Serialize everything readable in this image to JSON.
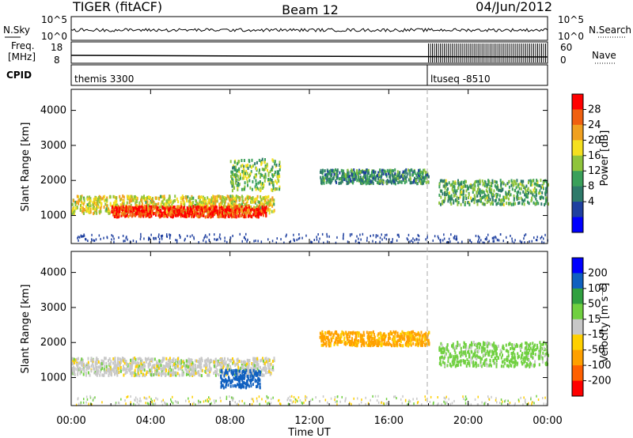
{
  "header": {
    "radar": "TIGER (fitACF)",
    "beam": "Beam 12",
    "date": "04/Jun/2012"
  },
  "panels": {
    "nsky_label": "N.Sky",
    "nsearch_label": "N.Search",
    "nsky_ticks": [
      "10^5",
      "10^0"
    ],
    "nsearch_ticks": [
      "10^5",
      "10^0"
    ],
    "freq_label": "Freq.",
    "freq_unit": "[MHz]",
    "freq_ticks": [
      "18",
      "8"
    ],
    "nave_label": "Nave",
    "nave_ticks": [
      "60",
      "0"
    ],
    "cpid_label": "CPID",
    "cpid_segments": [
      "themis 3300",
      "ltuseq -8510"
    ]
  },
  "colors": {
    "power": [
      "#0000ff",
      "#1f40a0",
      "#2e7a6a",
      "#3aa05a",
      "#8fc43c",
      "#f5e020",
      "#f0a020",
      "#f06010",
      "#ff0000"
    ],
    "velocity": [
      "#ff0000",
      "#ff6000",
      "#ffa000",
      "#ffd000",
      "#c8c8c8",
      "#70d040",
      "#30a040",
      "#1060c0",
      "#0000ff"
    ]
  },
  "chart_data": [
    {
      "type": "heatmap",
      "name": "power",
      "ylabel": "Slant Range [km]",
      "y_ticks": [
        1000,
        2000,
        3000,
        4000
      ],
      "ylim": [
        200,
        4600
      ],
      "x_ticks": [
        "00:00",
        "04:00",
        "08:00",
        "12:00",
        "16:00",
        "20:00",
        "00:00"
      ],
      "xlim_hours": [
        0,
        24
      ],
      "colorbar": {
        "label": "Power [dB]",
        "ticks": [
          4,
          8,
          12,
          16,
          20,
          24,
          28
        ],
        "range": [
          0,
          30
        ]
      },
      "features": [
        {
          "time_start": 0.0,
          "time_end": 10.2,
          "range_center": 1350,
          "range_width": 500,
          "value": 18
        },
        {
          "time_start": 2.0,
          "time_end": 9.8,
          "range_center": 1150,
          "range_width": 300,
          "value": 27
        },
        {
          "time_start": 8.0,
          "time_end": 10.5,
          "range_center": 2200,
          "range_width": 900,
          "value": 14
        },
        {
          "time_start": 12.5,
          "time_end": 18.0,
          "range_center": 2150,
          "range_width": 400,
          "value": 10
        },
        {
          "time_start": 18.5,
          "time_end": 24.0,
          "range_center": 1700,
          "range_width": 700,
          "value": 12
        }
      ]
    },
    {
      "type": "heatmap",
      "name": "velocity",
      "ylabel": "Slant Range [km]",
      "y_ticks": [
        1000,
        2000,
        3000,
        4000
      ],
      "ylim": [
        200,
        4600
      ],
      "x_ticks": [
        "00:00",
        "04:00",
        "08:00",
        "12:00",
        "16:00",
        "20:00",
        "00:00"
      ],
      "xlabel": "Time UT",
      "xlim_hours": [
        0,
        24
      ],
      "colorbar": {
        "label": "Velocity [m s⁻¹]",
        "ticks": [
          200,
          100,
          50,
          15,
          -15,
          -50,
          -100,
          -200
        ]
      },
      "features": [
        {
          "time_start": 0.0,
          "time_end": 10.2,
          "range_center": 1350,
          "range_width": 500,
          "value": 0
        },
        {
          "time_start": 7.5,
          "time_end": 9.5,
          "range_center": 1000,
          "range_width": 500,
          "value": 180
        },
        {
          "time_start": 12.5,
          "time_end": 18.0,
          "range_center": 2150,
          "range_width": 400,
          "value": -60
        },
        {
          "time_start": 18.5,
          "time_end": 24.0,
          "range_center": 1700,
          "range_width": 700,
          "value": 30
        }
      ]
    }
  ],
  "xlabel": "Time UT"
}
